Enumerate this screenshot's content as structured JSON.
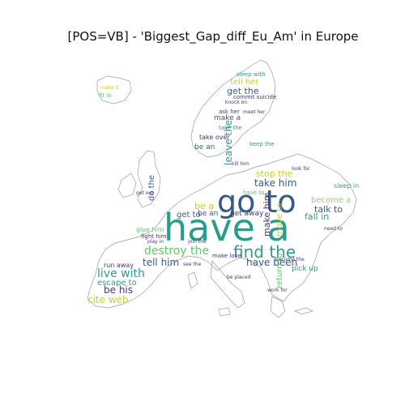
{
  "title": "[POS=VB] - 'Biggest_Gap_diff_Eu_Am' in Europe",
  "colors": {
    "teal": "#2a9d8a",
    "navy": "#345a8a",
    "purple": "#46337e",
    "green": "#5ec962",
    "yellow": "#c8d020",
    "lightgreen": "#8fd06a"
  },
  "words": {
    "have_a": "have a",
    "go_to": "go to",
    "find_the": "find the",
    "destroy_the": "destroy the",
    "live_with": "live with",
    "tell_him": "tell him",
    "have_been": "have been",
    "be_his": "be his",
    "cite_web": "cite web",
    "escape_to": "escape to",
    "run_away": "run away",
    "get_to": "get to",
    "be_an_1": "be an",
    "be_an_2": "be an",
    "be_a": "be a",
    "take_him": "take him",
    "stop_the": "stop the",
    "fall_in": "fall in",
    "talk_to": "talk to",
    "become_a": "become a",
    "get_away": "get away",
    "make_him": "make him",
    "get_the": "get the",
    "tell_her": "tell her",
    "sleep_with": "sleep with",
    "commit_suicide": "commit suicide",
    "make_a": "make a",
    "ask_her": "ask her",
    "take_over": "take over",
    "leave_the": "leave the",
    "do_the": "do the",
    "give_him": "give him",
    "fight_him": "fight him",
    "play_in": "play in",
    "make_love": "make love",
    "sleep_in": "sleep in",
    "pick_up": "pick up",
    "kill_him": "kill him",
    "return_to": "return to",
    "move_to": "move to",
    "knock_on": "knock on",
    "take_the": "take the",
    "be_placed": "be placed",
    "become_the": "become the",
    "fit_in": "fit in",
    "make_it": "make it",
    "see_the": "see the",
    "have_to": "have to",
    "need_to": "need to",
    "keep_the": "keep the",
    "get_out": "get out",
    "meet_her": "meet her",
    "look_for": "look for",
    "join_the": "join the",
    "work_for": "work for"
  }
}
